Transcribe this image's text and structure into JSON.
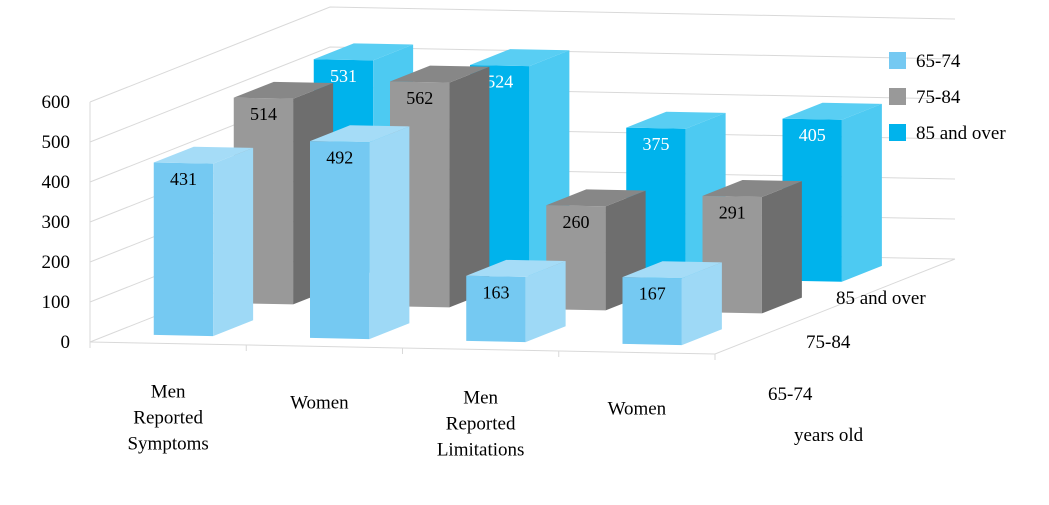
{
  "chart_data": {
    "type": "bar",
    "subtype": "3d-column",
    "categories": [
      [
        "Men",
        "Reported",
        "Symptoms"
      ],
      [
        "Women"
      ],
      [
        "Men",
        "Reported",
        "Limitations"
      ],
      [
        "Women"
      ]
    ],
    "series": [
      {
        "name": "65-74",
        "color": "#75C9F2",
        "values": [
          431,
          492,
          163,
          167
        ]
      },
      {
        "name": "75-84",
        "color": "#999999",
        "values": [
          514,
          562,
          260,
          291
        ]
      },
      {
        "name": "85 and over",
        "color": "#00B3EC",
        "values": [
          531,
          524,
          375,
          405
        ]
      }
    ],
    "depth_axis_labels": [
      "85 and over",
      "75-84",
      "65-74"
    ],
    "depth_axis_title": "years old",
    "y_ticks": [
      0,
      100,
      200,
      300,
      400,
      500,
      600
    ],
    "ylim": [
      0,
      600
    ],
    "legend_position": "right",
    "grid": true,
    "title": "",
    "xlabel": "",
    "ylabel": ""
  }
}
